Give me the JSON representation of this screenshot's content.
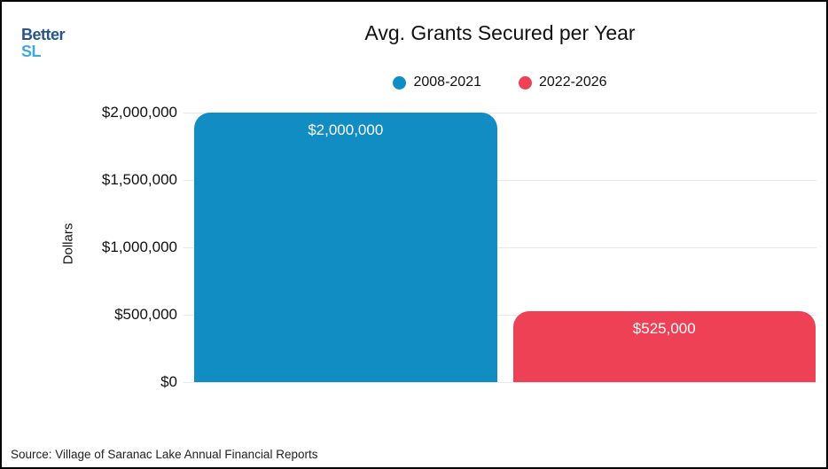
{
  "page": {
    "logo": {
      "line1": "Better",
      "line2": "SL",
      "line1_color": "#27558b",
      "line2_color": "#3fa9dc"
    },
    "source": "Source: Village of Saranac Lake Annual Financial Reports"
  },
  "chart_data": {
    "type": "bar",
    "title": "Avg. Grants Secured per Year",
    "xlabel": "",
    "ylabel": "Dollars",
    "ylim": [
      0,
      2000000
    ],
    "grid": true,
    "legend_position": "top",
    "yticks": [
      {
        "value": 0,
        "label": "$0"
      },
      {
        "value": 500000,
        "label": "$500,000"
      },
      {
        "value": 1000000,
        "label": "$1,000,000"
      },
      {
        "value": 1500000,
        "label": "$1,500,000"
      },
      {
        "value": 2000000,
        "label": "$2,000,000"
      }
    ],
    "bars": [
      {
        "category": "2008-2021",
        "value": 2000000,
        "value_label": "$2,000,000",
        "color": "#118dc4"
      },
      {
        "category": "2022-2026",
        "value": 525000,
        "value_label": "$525,000",
        "color": "#ee4155"
      }
    ]
  }
}
